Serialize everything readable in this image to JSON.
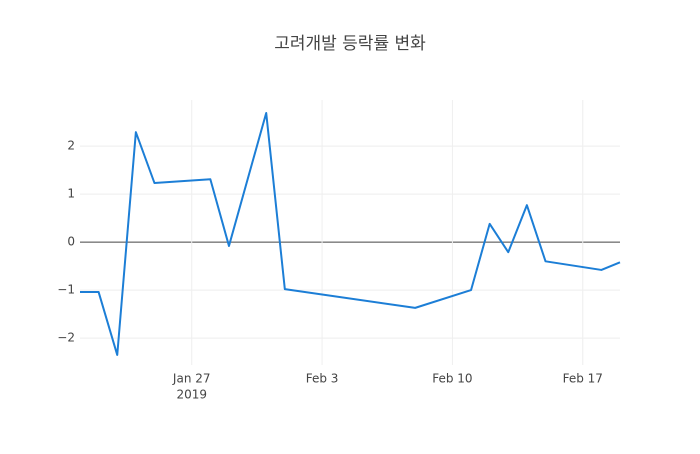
{
  "chart_data": {
    "type": "line",
    "title": "고려개발 등락률 변화",
    "x": [
      "2019-01-21",
      "2019-01-22",
      "2019-01-23",
      "2019-01-24",
      "2019-01-25",
      "2019-01-28",
      "2019-01-29",
      "2019-01-31",
      "2019-02-01",
      "2019-02-08",
      "2019-02-11",
      "2019-02-12",
      "2019-02-13",
      "2019-02-14",
      "2019-02-15",
      "2019-02-18",
      "2019-02-19"
    ],
    "series": [
      {
        "color": "#1c7ed6",
        "values": [
          -1.04,
          -1.04,
          -2.35,
          2.29,
          1.23,
          1.31,
          -0.08,
          2.69,
          -0.98,
          -1.37,
          -1.0,
          0.38,
          -0.21,
          0.77,
          -0.4,
          -0.58,
          -0.42
        ]
      }
    ],
    "xlim": [
      "2019-01-21",
      "2019-02-19"
    ],
    "xticks": [
      {
        "value": "2019-01-27",
        "label": "Jan 27"
      },
      {
        "value": "2019-02-03",
        "label": "Feb 3"
      },
      {
        "value": "2019-02-10",
        "label": "Feb 10"
      },
      {
        "value": "2019-02-17",
        "label": "Feb 17"
      }
    ],
    "x_year_label": "2019",
    "ylim": [
      -2.56,
      2.96
    ],
    "yticks": [
      {
        "value": -2,
        "label": "−2"
      },
      {
        "value": -1,
        "label": "−1"
      },
      0,
      1,
      2
    ],
    "grid": true,
    "zeroline": true
  }
}
